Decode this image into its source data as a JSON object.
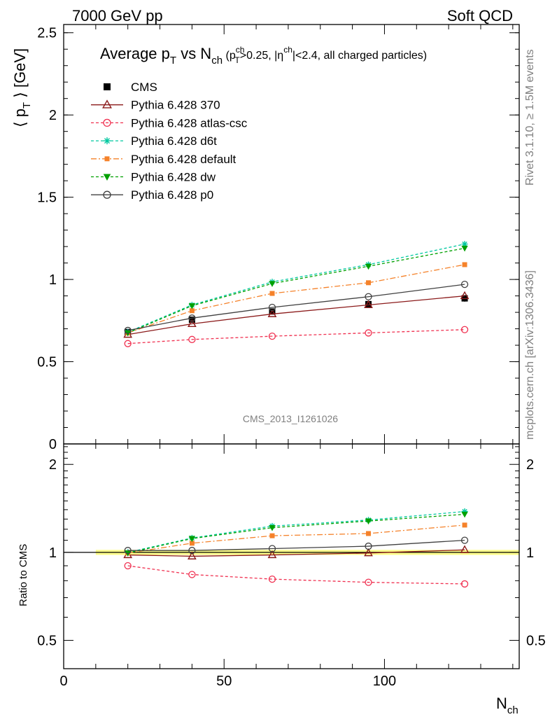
{
  "header": {
    "left": "7000 GeV pp",
    "right": "Soft QCD"
  },
  "side_labels": {
    "rivet": "Rivet 3.1.10, ≥ 1.5M events",
    "mcplots": "mcplots.cern.ch [arXiv:1306.3436]"
  },
  "watermark": "CMS_2013_I1261026",
  "chart_data": [
    {
      "type": "line",
      "title_parts": {
        "main": "Average p",
        "main_sub": "T",
        "vs": " vs N",
        "vs_sub": "ch",
        "cut_open": " (p",
        "cut_sup": "ch",
        "cut_sub": "T",
        "cut_mid": ">0.25, |η",
        "cut_sup2": "ch",
        "cut_end": "|<2.4, all charged particles)"
      },
      "ylabel_parts": {
        "open": "⟨ p",
        "sub": "T",
        "close": " ⟩ [GeV]"
      },
      "xlabel_parts": {
        "main": "N",
        "sub": "ch"
      },
      "xlim": [
        0,
        142
      ],
      "ylim": [
        0,
        2.55
      ],
      "xticks": [
        0,
        50,
        100
      ],
      "xtick_labels": [
        "0",
        "50",
        "100"
      ],
      "yticks": [
        0.5,
        1,
        1.5,
        2,
        2.5
      ],
      "ytick_labels": [
        "0.5",
        "1",
        "1.5",
        "2",
        "2.5"
      ],
      "ytick_zero_label": "0",
      "legend_position": "top-left",
      "x": [
        20,
        40,
        65,
        95,
        125
      ],
      "series": [
        {
          "name": "CMS",
          "color": "#000000",
          "marker": "square-filled",
          "dash": "none",
          "values": [
            0.68,
            0.755,
            0.805,
            0.85,
            0.885
          ],
          "errors": [
            0.012,
            0.013,
            0.014,
            0.015,
            0.02
          ]
        },
        {
          "name": "Pythia 6.428 370",
          "color": "#8b1a1a",
          "marker": "triangle-open",
          "dash": "solid",
          "values": [
            0.665,
            0.73,
            0.79,
            0.845,
            0.9
          ]
        },
        {
          "name": "Pythia 6.428 atlas-csc",
          "color": "#f03050",
          "marker": "circle-open",
          "dash": "4,3",
          "values": [
            0.61,
            0.635,
            0.655,
            0.675,
            0.695
          ]
        },
        {
          "name": "Pythia 6.428 d6t",
          "color": "#00c8a0",
          "marker": "star",
          "dash": "4,3",
          "values": [
            0.68,
            0.845,
            0.985,
            1.09,
            1.215
          ]
        },
        {
          "name": "Pythia 6.428 default",
          "color": "#f5822a",
          "marker": "square-filled",
          "dash": "8,3,2,3",
          "values": [
            0.675,
            0.81,
            0.915,
            0.98,
            1.09
          ]
        },
        {
          "name": "Pythia 6.428 dw",
          "color": "#00a000",
          "marker": "triangle-down-filled",
          "dash": "4,3",
          "values": [
            0.675,
            0.84,
            0.975,
            1.08,
            1.19
          ]
        },
        {
          "name": "Pythia 6.428 p0",
          "color": "#404040",
          "marker": "circle-open",
          "dash": "solid",
          "values": [
            0.69,
            0.765,
            0.83,
            0.895,
            0.97
          ]
        }
      ]
    },
    {
      "type": "line",
      "ylabel": "Ratio to CMS",
      "xlim": [
        0,
        142
      ],
      "ylim": [
        0.4,
        2.35
      ],
      "log_scale_y": true,
      "yticks": [
        0.5,
        1,
        2
      ],
      "ytick_labels": [
        "0.5",
        "1",
        "2"
      ],
      "band_color": "#ffff00",
      "x": [
        20,
        40,
        65,
        95,
        125
      ],
      "series": [
        {
          "name": "Pythia 6.428 370",
          "values": [
            0.98,
            0.97,
            0.98,
            0.995,
            1.02
          ]
        },
        {
          "name": "Pythia 6.428 atlas-csc",
          "values": [
            0.9,
            0.84,
            0.81,
            0.79,
            0.78
          ]
        },
        {
          "name": "Pythia 6.428 d6t",
          "values": [
            1.0,
            1.12,
            1.23,
            1.29,
            1.38
          ]
        },
        {
          "name": "Pythia 6.428 default",
          "values": [
            0.995,
            1.075,
            1.14,
            1.16,
            1.24
          ]
        },
        {
          "name": "Pythia 6.428 dw",
          "values": [
            0.995,
            1.115,
            1.215,
            1.28,
            1.35
          ]
        },
        {
          "name": "Pythia 6.428 p0",
          "values": [
            1.015,
            1.015,
            1.03,
            1.05,
            1.1
          ]
        }
      ]
    }
  ]
}
